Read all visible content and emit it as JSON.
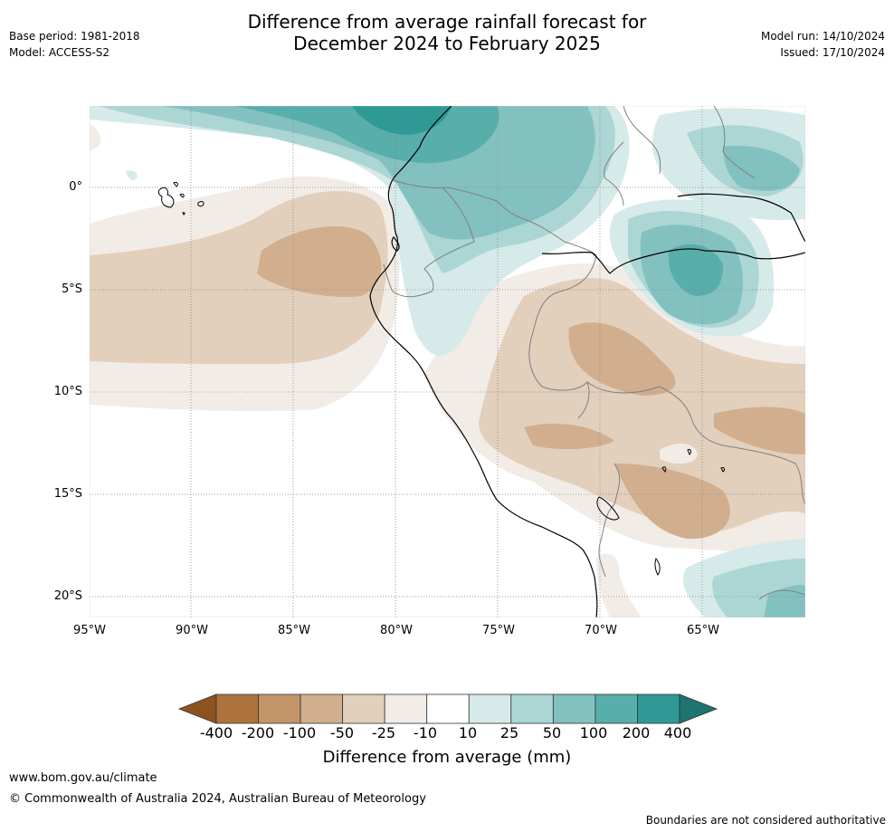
{
  "header": {
    "title_line1": "Difference from average rainfall forecast for",
    "title_line2": "December 2024 to February 2025",
    "base_period": "Base period: 1981-2018",
    "model": "Model: ACCESS-S2",
    "model_run": "Model run: 14/10/2024",
    "issued": "Issued: 17/10/2024"
  },
  "map": {
    "lat_labels": [
      "0°",
      "5°S",
      "10°S",
      "15°S",
      "20°S"
    ],
    "lon_labels": [
      "95°W",
      "90°W",
      "85°W",
      "80°W",
      "75°W",
      "70°W",
      "65°W"
    ],
    "gridline_color": "#888888",
    "coastline_color": "#000000",
    "border_color": "#808080"
  },
  "colorbar": {
    "title": "Difference from average (mm)",
    "labels": [
      "-400",
      "-200",
      "-100",
      "-50",
      "-25",
      "-10",
      "10",
      "25",
      "50",
      "100",
      "200",
      "400"
    ],
    "colors": [
      "#8c5220",
      "#ad733c",
      "#c29468",
      "#d1ae8e",
      "#e2cfbc",
      "#f2ece6",
      "#ffffff",
      "#d6eae9",
      "#abd6d4",
      "#82c1bf",
      "#57aeab",
      "#2e9995",
      "#1f7370"
    ]
  },
  "footer": {
    "website": "www.bom.gov.au/climate",
    "copyright": "© Commonwealth of Australia 2024, Australian Bureau of Meteorology",
    "disclaimer": "Boundaries are not considered authoritative"
  }
}
